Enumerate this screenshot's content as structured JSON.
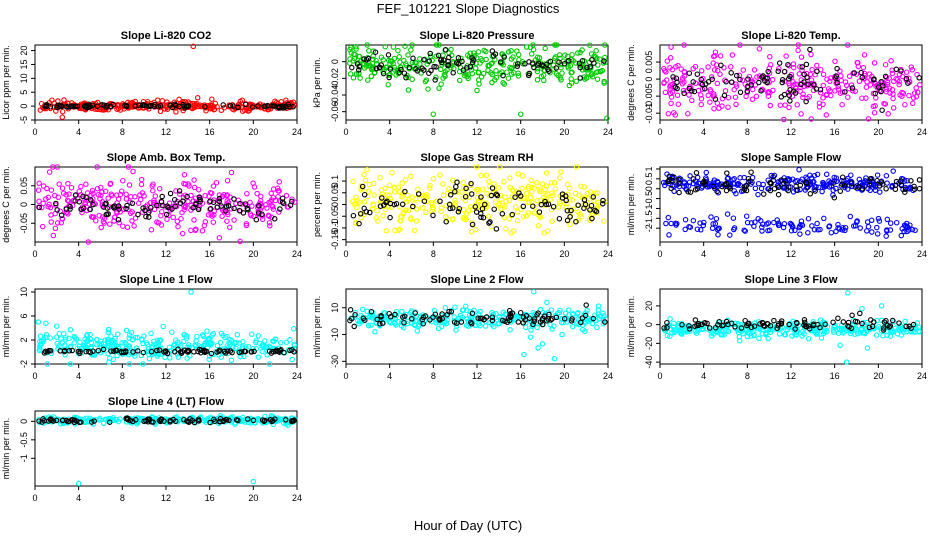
{
  "figure": {
    "title": "FEF_101221  Slope Diagnostics",
    "xlabel": "Hour of Day (UTC)",
    "colors": {
      "reference": "#000000"
    }
  },
  "chart_data": [
    {
      "type": "scatter",
      "title": "Slope Li-820 CO2",
      "ylabel": "Licor ppm per min.",
      "xlim": [
        0,
        24
      ],
      "ylim": [
        -5,
        22
      ],
      "xticks": [
        0,
        4,
        8,
        12,
        16,
        20,
        24
      ],
      "yticks": [
        -5,
        0,
        5,
        10,
        15,
        20
      ],
      "series": [
        {
          "color": "#ff0000",
          "n": 300,
          "center": 0,
          "spread": 0.8,
          "outliers": [
            [
              14.5,
              21.5
            ],
            [
              16.2,
              2.5
            ],
            [
              14.9,
              3.0
            ],
            [
              2.5,
              -4.0
            ],
            [
              13.2,
              2.4
            ]
          ]
        },
        {
          "color": "#000000",
          "n": 90,
          "center": 0,
          "spread": 0.35
        }
      ]
    },
    {
      "type": "scatter",
      "title": "Slope Li-820 Pressure",
      "ylabel": "kPa per min.",
      "xlim": [
        0,
        24
      ],
      "ylim": [
        -0.07,
        0.02
      ],
      "xticks": [
        0,
        4,
        8,
        12,
        16,
        20,
        24
      ],
      "yticks": [
        -0.06,
        -0.04,
        -0.02,
        0.0
      ],
      "series": [
        {
          "color": "#00c800",
          "n": 320,
          "center": -0.005,
          "spread": 0.011,
          "outliers": [
            [
              8,
              -0.063
            ],
            [
              16,
              -0.063
            ],
            [
              23.9,
              -0.068
            ],
            [
              0.9,
              0.018
            ],
            [
              3.6,
              0.018
            ]
          ]
        },
        {
          "color": "#000000",
          "n": 90,
          "center": -0.004,
          "spread": 0.007
        }
      ]
    },
    {
      "type": "scatter",
      "title": "Slope Li-820 Temp.",
      "ylabel": "degrees C per min.",
      "xlim": [
        0,
        24
      ],
      "ylim": [
        -0.012,
        0.01
      ],
      "xticks": [
        0,
        4,
        8,
        12,
        16,
        20,
        24
      ],
      "yticks": [
        -0.01,
        -0.005,
        0.0,
        0.005
      ],
      "series": [
        {
          "color": "#ff00ff",
          "n": 320,
          "center": -0.001,
          "spread": 0.0042
        },
        {
          "color": "#000000",
          "n": 90,
          "center": -0.001,
          "spread": 0.0028
        }
      ]
    },
    {
      "type": "scatter",
      "title": "Slope Amb. Box Temp.",
      "ylabel": "degrees C per min.",
      "xlim": [
        0,
        24
      ],
      "ylim": [
        -0.1,
        0.1
      ],
      "xticks": [
        0,
        4,
        8,
        12,
        16,
        20,
        24
      ],
      "yticks": [
        -0.05,
        0.0,
        0.05
      ],
      "series": [
        {
          "color": "#ff00ff",
          "n": 320,
          "center": 0,
          "spread": 0.038
        },
        {
          "color": "#000000",
          "n": 90,
          "center": -0.005,
          "spread": 0.02
        }
      ]
    },
    {
      "type": "scatter",
      "title": "Slope Gas Stream RH",
      "ylabel": "percent per min.",
      "xlim": [
        0,
        24
      ],
      "ylim": [
        -0.16,
        0.16
      ],
      "xticks": [
        0,
        4,
        8,
        12,
        16,
        20,
        24
      ],
      "yticks": [
        -0.15,
        -0.1,
        -0.05,
        0.0,
        0.05,
        0.1
      ],
      "series": [
        {
          "color": "#ffff00",
          "n": 320,
          "center": 0.01,
          "spread": 0.055
        },
        {
          "color": "#000000",
          "n": 90,
          "center": 0.0,
          "spread": 0.045
        }
      ]
    },
    {
      "type": "scatter",
      "title": "Slope Sample Flow",
      "ylabel": "ml/min per min.",
      "xlim": [
        0,
        24
      ],
      "ylim": [
        -2.7,
        1.1
      ],
      "xticks": [
        0,
        4,
        8,
        12,
        16,
        20,
        24
      ],
      "yticks": [
        -2.0,
        -1.5,
        -1.0,
        -0.5,
        0.0,
        0.5,
        1.0
      ],
      "series": [
        {
          "color": "#0000ff",
          "n": 240,
          "center": 0.25,
          "spread": 0.22
        },
        {
          "color": "#0000ff",
          "n": 120,
          "center": -1.9,
          "spread": 0.22
        },
        {
          "color": "#000000",
          "n": 90,
          "center": 0.2,
          "spread": 0.25
        }
      ]
    },
    {
      "type": "scatter",
      "title": "Slope Line 1 Flow",
      "ylabel": "ml/min per min.",
      "xlim": [
        0,
        24
      ],
      "ylim": [
        -2,
        10.5
      ],
      "xticks": [
        0,
        4,
        8,
        12,
        16,
        20,
        24
      ],
      "yticks": [
        -2,
        2,
        6,
        10
      ],
      "series": [
        {
          "color": "#00ffff",
          "n": 320,
          "center": 1.0,
          "spread": 1.2,
          "outliers": [
            [
              14.3,
              10.0
            ],
            [
              0.3,
              5.0
            ],
            [
              1.0,
              4.8
            ],
            [
              2.0,
              4.3
            ]
          ]
        },
        {
          "color": "#000000",
          "n": 90,
          "center": 0.1,
          "spread": 0.15
        }
      ]
    },
    {
      "type": "scatter",
      "title": "Slope Line 2 Flow",
      "ylabel": "ml/min per min.",
      "xlim": [
        0,
        24
      ],
      "ylim": [
        -32,
        24
      ],
      "xticks": [
        0,
        4,
        8,
        12,
        16,
        20,
        24
      ],
      "yticks": [
        -30,
        -10,
        10
      ],
      "series": [
        {
          "color": "#00ffff",
          "n": 280,
          "center": 1.5,
          "spread": 3.5,
          "outliers": [
            [
              17.2,
              22
            ],
            [
              16.3,
              -25
            ],
            [
              19.1,
              -28
            ],
            [
              17.6,
              -20
            ],
            [
              18.4,
              14
            ],
            [
              16.9,
              -12
            ],
            [
              19.8,
              -10
            ],
            [
              18.0,
              -17
            ]
          ]
        },
        {
          "color": "#000000",
          "n": 90,
          "center": 2.0,
          "spread": 2.5,
          "outliers": [
            [
              22.0,
              12
            ],
            [
              17.6,
              6
            ],
            [
              18.6,
              5
            ]
          ]
        }
      ]
    },
    {
      "type": "scatter",
      "title": "Slope Line 3 Flow",
      "ylabel": "ml/min per min.",
      "xlim": [
        0,
        24
      ],
      "ylim": [
        -42,
        38
      ],
      "xticks": [
        0,
        4,
        8,
        12,
        16,
        20,
        24
      ],
      "yticks": [
        -40,
        -20,
        0,
        20
      ],
      "series": [
        {
          "color": "#00ffff",
          "n": 300,
          "center": -5,
          "spread": 4,
          "outliers": [
            [
              17.2,
              34
            ],
            [
              17.1,
              -40
            ],
            [
              18.5,
              17
            ],
            [
              16.5,
              -22
            ],
            [
              20.3,
              20
            ],
            [
              19.0,
              -25
            ]
          ]
        },
        {
          "color": "#000000",
          "n": 90,
          "center": 0,
          "spread": 2.5,
          "outliers": [
            [
              17.6,
              10
            ],
            [
              19.3,
              5
            ],
            [
              18.3,
              12
            ]
          ]
        }
      ]
    },
    {
      "type": "scatter",
      "title": "Slope Line 4 (LT) Flow",
      "ylabel": "ml/min per min.",
      "xlim": [
        0,
        24
      ],
      "ylim": [
        -1.75,
        0.28
      ],
      "xticks": [
        0,
        4,
        8,
        12,
        16,
        20,
        24
      ],
      "yticks": [
        -1.0,
        -0.5,
        0.0
      ],
      "series": [
        {
          "color": "#00ffff",
          "n": 300,
          "center": 0.03,
          "spread": 0.045,
          "outliers": [
            [
              4.0,
              -1.68
            ],
            [
              20.0,
              -1.63
            ]
          ]
        },
        {
          "color": "#000000",
          "n": 90,
          "center": 0.02,
          "spread": 0.03
        }
      ]
    }
  ]
}
